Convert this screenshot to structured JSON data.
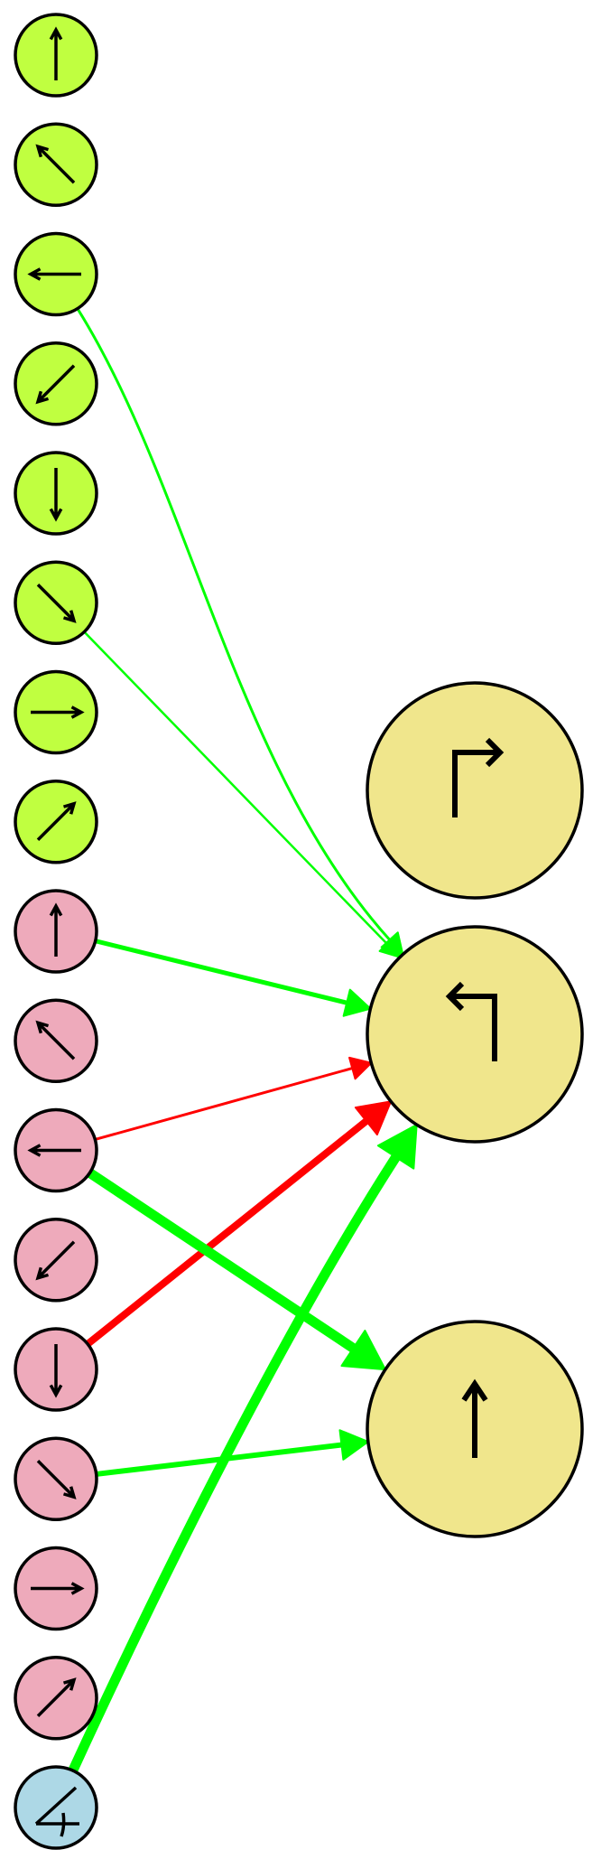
{
  "colors": {
    "lime": "#c0ff40",
    "pink": "#eeaabb",
    "blue": "#add8e6",
    "khaki": "#f0e68c",
    "positive": "#00ff00",
    "negative": "#ff0000"
  },
  "nodes": [
    {
      "id": "lime-up",
      "group": "lime",
      "icon": "arrow-up"
    },
    {
      "id": "lime-up-left",
      "group": "lime",
      "icon": "arrow-up-left"
    },
    {
      "id": "lime-left",
      "group": "lime",
      "icon": "arrow-left"
    },
    {
      "id": "lime-down-left",
      "group": "lime",
      "icon": "arrow-down-left"
    },
    {
      "id": "lime-down",
      "group": "lime",
      "icon": "arrow-down"
    },
    {
      "id": "lime-down-right",
      "group": "lime",
      "icon": "arrow-down-right"
    },
    {
      "id": "lime-right",
      "group": "lime",
      "icon": "arrow-right"
    },
    {
      "id": "lime-up-right",
      "group": "lime",
      "icon": "arrow-up-right"
    },
    {
      "id": "pink-up",
      "group": "pink",
      "icon": "arrow-up"
    },
    {
      "id": "pink-up-left",
      "group": "pink",
      "icon": "arrow-up-left"
    },
    {
      "id": "pink-left",
      "group": "pink",
      "icon": "arrow-left"
    },
    {
      "id": "pink-down-left",
      "group": "pink",
      "icon": "arrow-down-left"
    },
    {
      "id": "pink-down",
      "group": "pink",
      "icon": "arrow-down"
    },
    {
      "id": "pink-down-right",
      "group": "pink",
      "icon": "arrow-down-right"
    },
    {
      "id": "pink-right",
      "group": "pink",
      "icon": "arrow-right"
    },
    {
      "id": "pink-up-right",
      "group": "pink",
      "icon": "arrow-up-right"
    },
    {
      "id": "blue-angle",
      "group": "blue",
      "icon": "angle"
    },
    {
      "id": "out-turn-right",
      "group": "khaki",
      "icon": "turn-right"
    },
    {
      "id": "out-turn-left",
      "group": "khaki",
      "icon": "turn-left"
    },
    {
      "id": "out-straight",
      "group": "khaki",
      "icon": "straight"
    }
  ],
  "edges": [
    {
      "from": "lime-left",
      "to": "out-turn-left",
      "sign": "positive",
      "weight": 3
    },
    {
      "from": "lime-down-right",
      "to": "out-turn-left",
      "sign": "positive",
      "weight": 2.5
    },
    {
      "from": "pink-up",
      "to": "out-turn-left",
      "sign": "positive",
      "weight": 5
    },
    {
      "from": "pink-left",
      "to": "out-turn-left",
      "sign": "negative",
      "weight": 3
    },
    {
      "from": "pink-down",
      "to": "out-turn-left",
      "sign": "negative",
      "weight": 8
    },
    {
      "from": "blue-angle",
      "to": "out-turn-left",
      "sign": "positive",
      "weight": 11
    },
    {
      "from": "pink-left",
      "to": "out-straight",
      "sign": "positive",
      "weight": 11
    },
    {
      "from": "pink-down-right",
      "to": "out-straight",
      "sign": "positive",
      "weight": 6
    }
  ]
}
